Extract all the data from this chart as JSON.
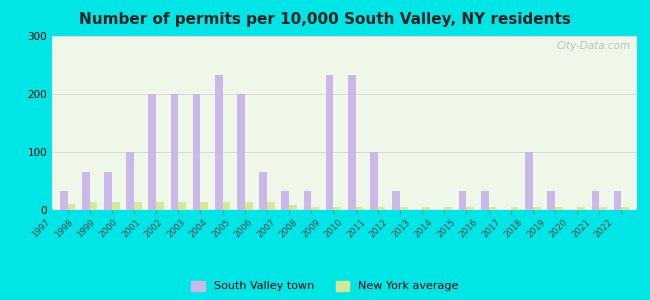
{
  "title": "Number of permits per 10,000 South Valley, NY residents",
  "years": [
    1997,
    1998,
    1999,
    2000,
    2001,
    2002,
    2003,
    2004,
    2005,
    2006,
    2007,
    2008,
    2009,
    2010,
    2011,
    2012,
    2013,
    2014,
    2015,
    2016,
    2017,
    2018,
    2019,
    2020,
    2021,
    2022
  ],
  "south_valley": [
    33,
    66,
    66,
    100,
    200,
    200,
    200,
    233,
    200,
    66,
    33,
    33,
    233,
    233,
    100,
    33,
    0,
    0,
    33,
    33,
    0,
    100,
    33,
    0,
    33,
    33
  ],
  "ny_average": [
    10,
    13,
    13,
    13,
    13,
    13,
    13,
    13,
    13,
    13,
    8,
    5,
    5,
    5,
    5,
    5,
    5,
    5,
    5,
    5,
    5,
    5,
    5,
    5,
    5,
    5
  ],
  "bar_color_sv": "#c9b8e8",
  "bar_color_ny": "#d4e897",
  "bg_outer": "#00e5e5",
  "bg_plot": "#eef7e8",
  "ylim": [
    0,
    300
  ],
  "yticks": [
    0,
    100,
    200,
    300
  ],
  "legend_sv": "South Valley town",
  "legend_ny": "New York average",
  "watermark": "City-Data.com",
  "bar_width": 0.35
}
